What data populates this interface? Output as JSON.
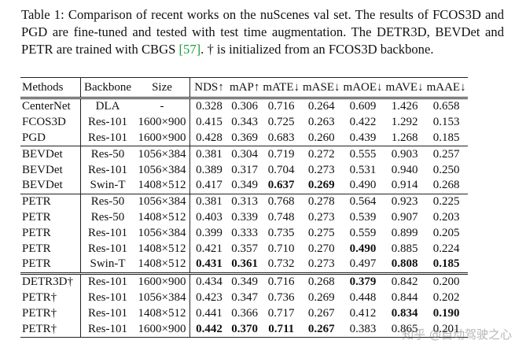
{
  "caption": {
    "before": "Table 1: Comparison of recent works on the nuScenes val set. The results of FCOS3D and PGD are fine-tuned and tested with test time augmentation. The DETR3D, BEVDet and PETR are trained with CBGS ",
    "ref": "[57]",
    "after": ". † is initialized from an FCOS3D backbone."
  },
  "table": {
    "header": [
      "Methods",
      "Backbone",
      "Size",
      "NDS↑",
      "mAP↑",
      "mATE↓",
      "mASE↓",
      "mAOE↓",
      "mAVE↓",
      "mAAE↓"
    ],
    "groups": [
      {
        "rows": [
          {
            "cells": [
              "CenterNet",
              "DLA",
              "-",
              "0.328",
              "0.306",
              "0.716",
              "0.264",
              "0.609",
              "1.426",
              "0.658"
            ],
            "bold": []
          },
          {
            "cells": [
              "FCOS3D",
              "Res-101",
              "1600×900",
              "0.415",
              "0.343",
              "0.725",
              "0.263",
              "0.422",
              "1.292",
              "0.153"
            ],
            "bold": []
          },
          {
            "cells": [
              "PGD",
              "Res-101",
              "1600×900",
              "0.428",
              "0.369",
              "0.683",
              "0.260",
              "0.439",
              "1.268",
              "0.185"
            ],
            "bold": []
          }
        ]
      },
      {
        "rows": [
          {
            "cells": [
              "BEVDet",
              "Res-50",
              "1056×384",
              "0.381",
              "0.304",
              "0.719",
              "0.272",
              "0.555",
              "0.903",
              "0.257"
            ],
            "bold": []
          },
          {
            "cells": [
              "BEVDet",
              "Res-101",
              "1056×384",
              "0.389",
              "0.317",
              "0.704",
              "0.273",
              "0.531",
              "0.940",
              "0.250"
            ],
            "bold": []
          },
          {
            "cells": [
              "BEVDet",
              "Swin-T",
              "1408×512",
              "0.417",
              "0.349",
              "0.637",
              "0.269",
              "0.490",
              "0.914",
              "0.268"
            ],
            "bold": [
              5,
              6
            ]
          }
        ]
      },
      {
        "rows": [
          {
            "cells": [
              "PETR",
              "Res-50",
              "1056×384",
              "0.381",
              "0.313",
              "0.768",
              "0.278",
              "0.564",
              "0.923",
              "0.225"
            ],
            "bold": []
          },
          {
            "cells": [
              "PETR",
              "Res-50",
              "1408×512",
              "0.403",
              "0.339",
              "0.748",
              "0.273",
              "0.539",
              "0.907",
              "0.203"
            ],
            "bold": []
          },
          {
            "cells": [
              "PETR",
              "Res-101",
              "1056×384",
              "0.399",
              "0.333",
              "0.735",
              "0.275",
              "0.559",
              "0.899",
              "0.205"
            ],
            "bold": []
          },
          {
            "cells": [
              "PETR",
              "Res-101",
              "1408×512",
              "0.421",
              "0.357",
              "0.710",
              "0.270",
              "0.490",
              "0.885",
              "0.224"
            ],
            "bold": [
              7
            ]
          },
          {
            "cells": [
              "PETR",
              "Swin-T",
              "1408×512",
              "0.431",
              "0.361",
              "0.732",
              "0.273",
              "0.497",
              "0.808",
              "0.185"
            ],
            "bold": [
              3,
              4,
              8,
              9
            ]
          }
        ]
      },
      {
        "rows": [
          {
            "cells": [
              "DETR3D†",
              "Res-101",
              "1600×900",
              "0.434",
              "0.349",
              "0.716",
              "0.268",
              "0.379",
              "0.842",
              "0.200"
            ],
            "bold": [
              7
            ]
          },
          {
            "cells": [
              "PETR†",
              "Res-101",
              "1056×384",
              "0.423",
              "0.347",
              "0.736",
              "0.269",
              "0.448",
              "0.844",
              "0.202"
            ],
            "bold": []
          },
          {
            "cells": [
              "PETR†",
              "Res-101",
              "1408×512",
              "0.441",
              "0.366",
              "0.717",
              "0.267",
              "0.412",
              "0.834",
              "0.190"
            ],
            "bold": [
              8,
              9
            ]
          },
          {
            "cells": [
              "PETR†",
              "Res-101",
              "1600×900",
              "0.442",
              "0.370",
              "0.711",
              "0.267",
              "0.383",
              "0.865",
              "0.201"
            ],
            "bold": [
              3,
              4,
              5,
              6
            ]
          }
        ]
      }
    ]
  },
  "watermark": "知乎 @自动驾驶之心"
}
